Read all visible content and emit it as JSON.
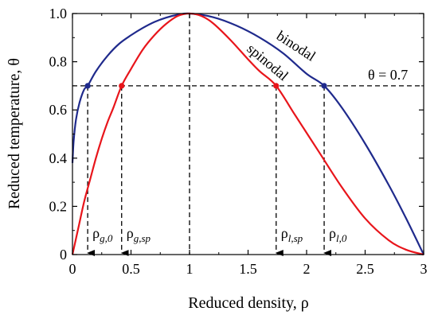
{
  "chart_data": {
    "type": "line",
    "xlabel": "Reduced density, ρ",
    "ylabel": "Reduced temperature, θ",
    "xlim": [
      0,
      3
    ],
    "ylim": [
      0,
      1.0
    ],
    "x_ticks": [
      "0",
      "0.5",
      "1",
      "1.5",
      "2",
      "2.5",
      "3"
    ],
    "x_tick_values": [
      0,
      0.5,
      1,
      1.5,
      2,
      2.5,
      3
    ],
    "y_ticks": [
      "0",
      "0.2",
      "0.4",
      "0.6",
      "0.8",
      "1.0"
    ],
    "y_tick_values": [
      0,
      0.2,
      0.4,
      0.6,
      0.8,
      1.0
    ],
    "series": [
      {
        "name": "binodal",
        "color": "#1f2a8c",
        "x": [
          0.0,
          0.01,
          0.03,
          0.06,
          0.1,
          0.13,
          0.2,
          0.3,
          0.4,
          0.5,
          0.6,
          0.7,
          0.8,
          0.9,
          1.0,
          1.2,
          1.4,
          1.6,
          1.8,
          2.0,
          2.15,
          2.3,
          2.5,
          2.7,
          2.85,
          3.0
        ],
        "y": [
          0.38,
          0.47,
          0.56,
          0.63,
          0.685,
          0.7,
          0.76,
          0.825,
          0.875,
          0.91,
          0.94,
          0.965,
          0.983,
          0.995,
          1.0,
          0.985,
          0.95,
          0.9,
          0.835,
          0.75,
          0.7,
          0.61,
          0.46,
          0.29,
          0.15,
          0.0
        ]
      },
      {
        "name": "spinodal",
        "color": "#e8151b",
        "x": [
          0.0,
          0.05,
          0.1,
          0.15,
          0.2,
          0.25,
          0.3,
          0.35,
          0.42,
          0.5,
          0.6,
          0.7,
          0.8,
          0.9,
          1.0,
          1.1,
          1.2,
          1.35,
          1.5,
          1.6,
          1.74,
          1.9,
          2.1,
          2.3,
          2.5,
          2.7,
          2.85,
          3.0
        ],
        "y": [
          0.0,
          0.11,
          0.22,
          0.31,
          0.4,
          0.48,
          0.55,
          0.61,
          0.7,
          0.77,
          0.85,
          0.91,
          0.957,
          0.99,
          1.0,
          0.99,
          0.96,
          0.89,
          0.81,
          0.76,
          0.7,
          0.58,
          0.43,
          0.28,
          0.15,
          0.06,
          0.02,
          0.0
        ]
      }
    ],
    "reference_lines": {
      "horizontal": [
        {
          "y": 0.7,
          "label": "θ = 0.7"
        }
      ],
      "vertical": [
        {
          "x": 0.13,
          "y": 0.7,
          "label_main": "ρ",
          "label_sub": "g,0",
          "dot_color": "#1f2a8c"
        },
        {
          "x": 0.42,
          "y": 0.7,
          "label_main": "ρ",
          "label_sub": "g,sp",
          "dot_color": "#e8151b"
        },
        {
          "x": 1.74,
          "y": 0.7,
          "label_main": "ρ",
          "label_sub": "l,sp",
          "dot_color": "#e8151b"
        },
        {
          "x": 2.15,
          "y": 0.7,
          "label_main": "ρ",
          "label_sub": "l,0",
          "dot_color": "#1f2a8c"
        },
        {
          "x": 1.0,
          "y": 1.0,
          "label_main": "",
          "label_sub": "",
          "dot_color": ""
        }
      ]
    },
    "curve_labels": {
      "binodal": "binodal",
      "spinodal": "spinodal"
    }
  }
}
